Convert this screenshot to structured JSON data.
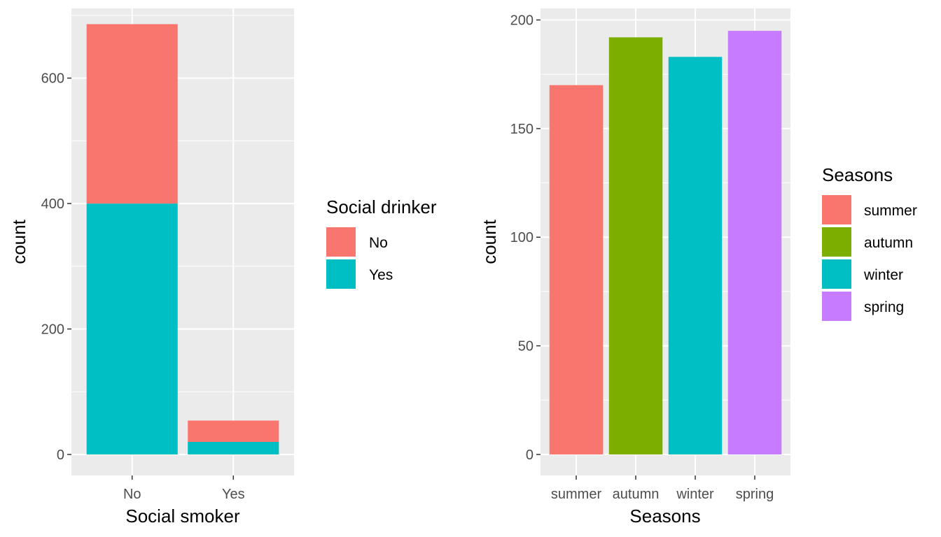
{
  "chart_data": [
    {
      "type": "bar",
      "stacked": true,
      "categories": [
        "No",
        "Yes"
      ],
      "series": [
        {
          "name": "Yes",
          "values": [
            400,
            20
          ],
          "color": "#00BFC4"
        },
        {
          "name": "No",
          "values": [
            286,
            34
          ],
          "color": "#F8766D"
        }
      ],
      "xlabel": "Social smoker",
      "ylabel": "count",
      "ylim": [
        0,
        710
      ],
      "yticks": [
        0,
        200,
        400,
        600
      ],
      "legend": {
        "title": "Social drinker",
        "placement": "right",
        "entries": [
          "No",
          "Yes"
        ]
      },
      "grid": true
    },
    {
      "type": "bar",
      "categories": [
        "summer",
        "autumn",
        "winter",
        "spring"
      ],
      "values": [
        170,
        192,
        183,
        195
      ],
      "colors": [
        "#F8766D",
        "#7CAE00",
        "#00BFC4",
        "#C77CFF"
      ],
      "xlabel": "Seasons",
      "ylabel": "count",
      "ylim": [
        0,
        205
      ],
      "yticks": [
        0,
        50,
        100,
        150,
        200
      ],
      "legend": {
        "title": "Seasons",
        "placement": "right",
        "entries": [
          "summer",
          "autumn",
          "winter",
          "spring"
        ]
      },
      "grid": true
    }
  ]
}
